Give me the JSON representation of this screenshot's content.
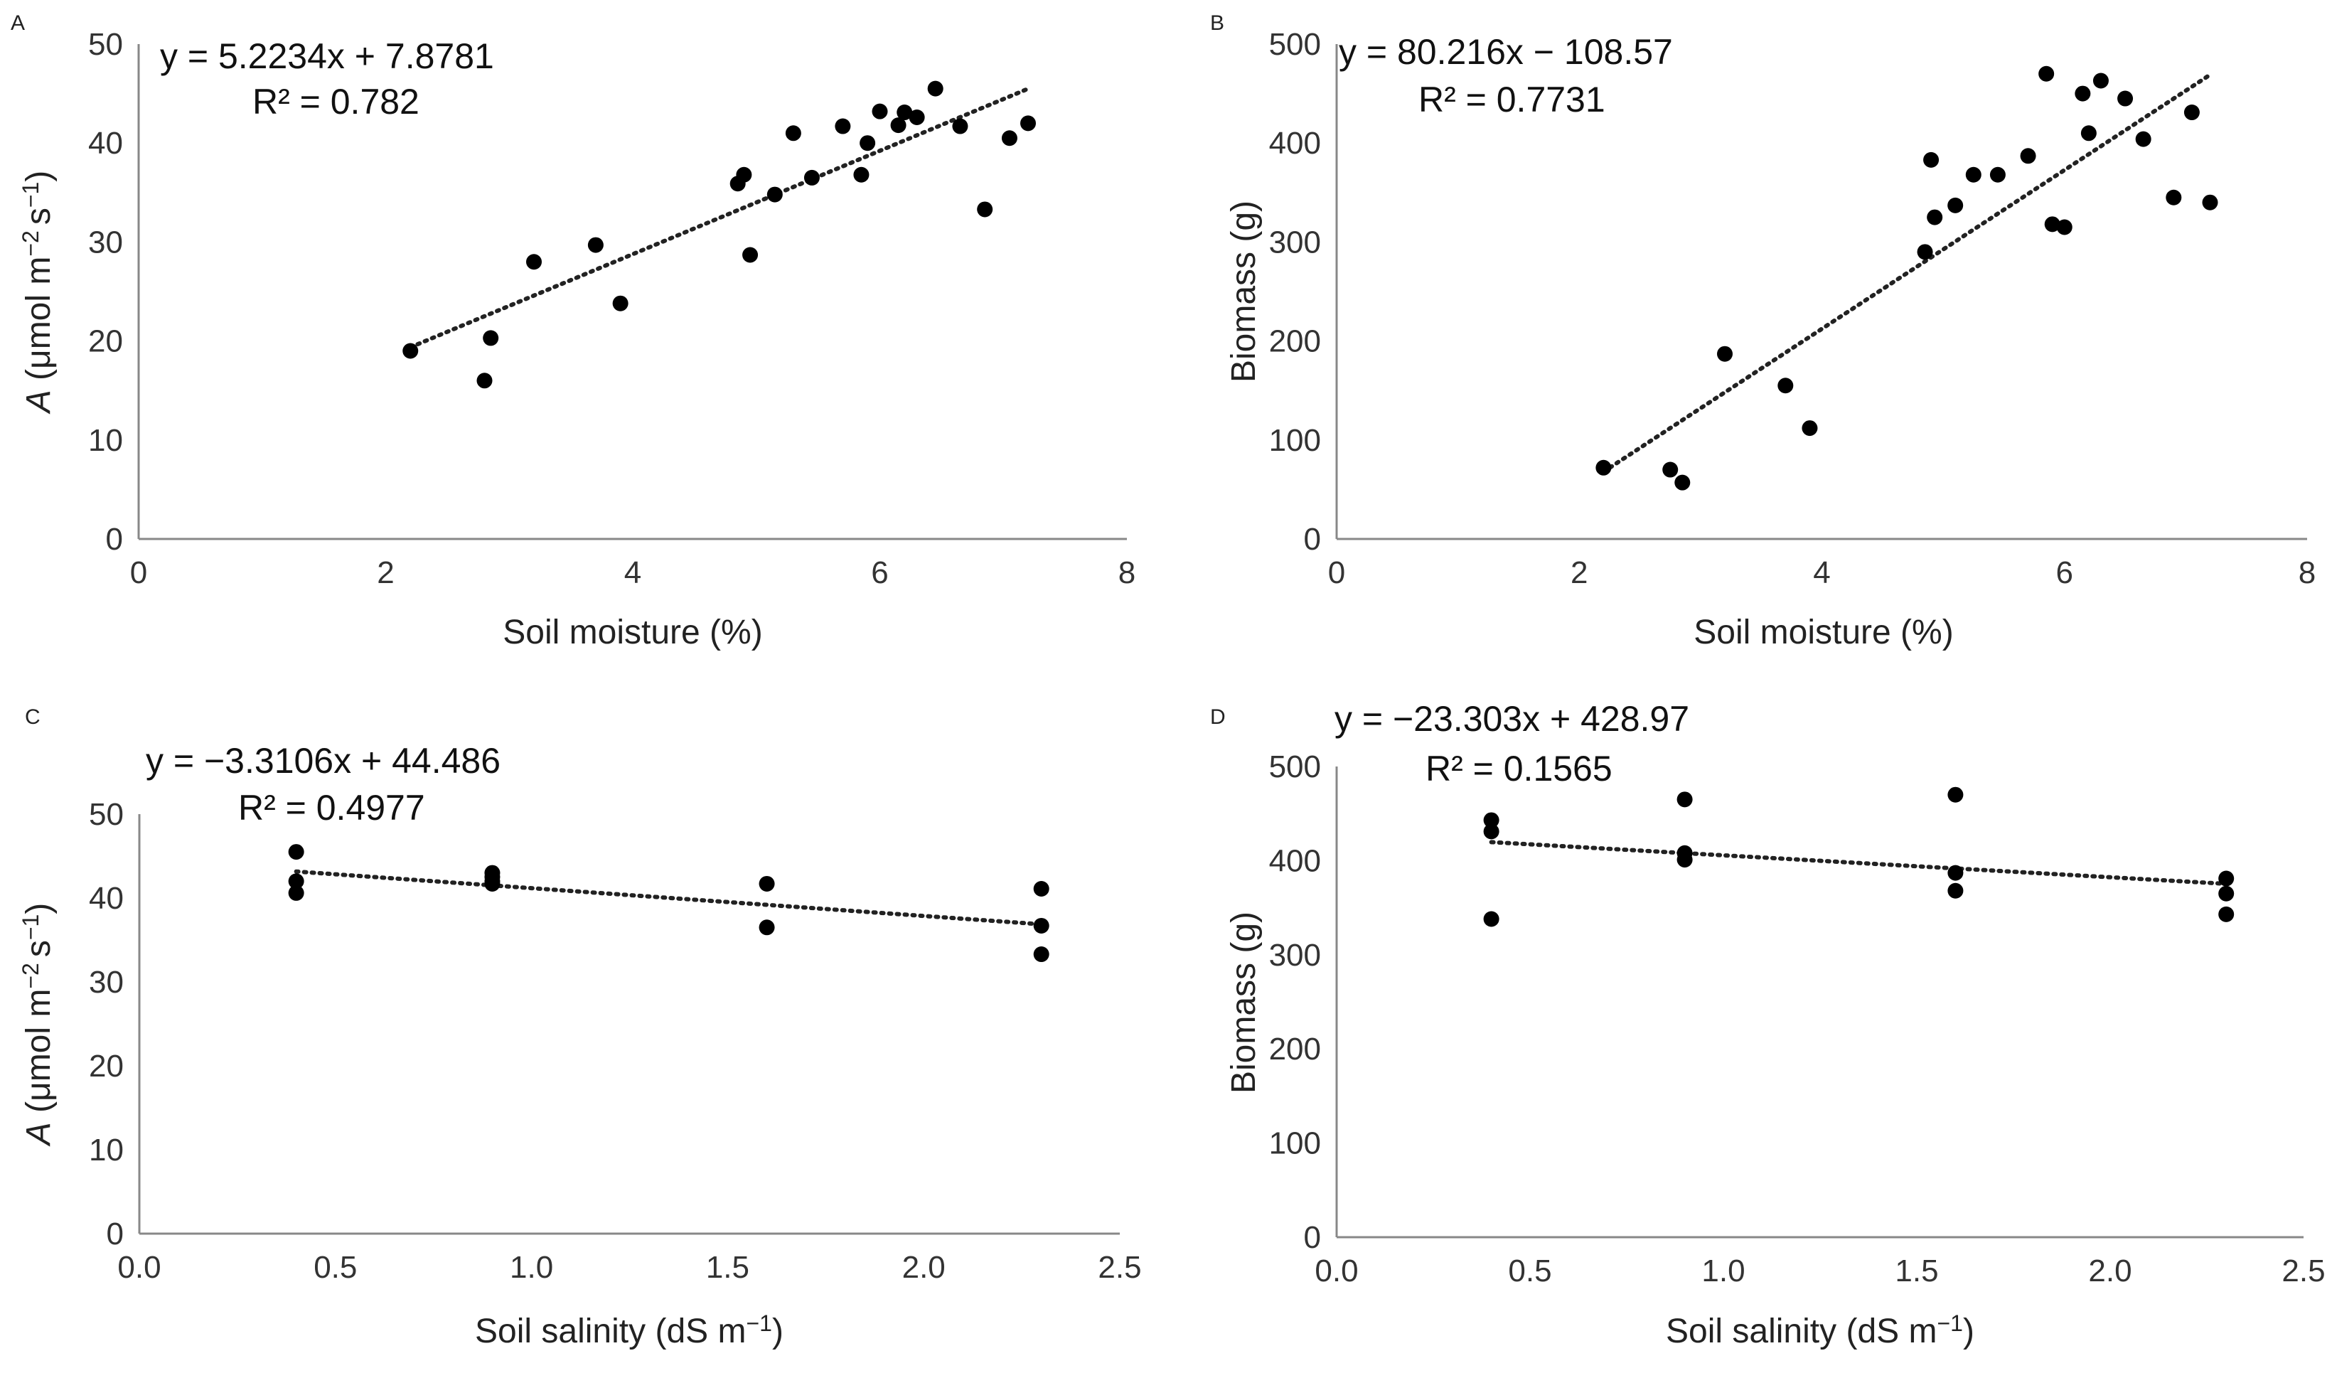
{
  "chart_data": [
    {
      "panel": "A",
      "type": "scatter",
      "equation": "y = 5.2234x + 7.8781",
      "r2": "R² = 0.782",
      "slope": 5.2234,
      "intercept": 7.8781,
      "trend_x": [
        2.2,
        7.2
      ],
      "xlabel": "Soil moisture (%)",
      "ylabel_prefix": "A",
      "ylabel_rest": " (μmol m",
      "ylabel_exp1": "−2",
      "ylabel_mid": "s",
      "ylabel_exp2": "−1",
      "ylabel_end": ")",
      "xlim": [
        0,
        8
      ],
      "ylim": [
        0,
        50
      ],
      "x_ticks": [
        0,
        2,
        4,
        6,
        8
      ],
      "x_tick_labels": [
        "0",
        "2",
        "4",
        "6",
        "8"
      ],
      "y_ticks": [
        0,
        10,
        20,
        30,
        40,
        50
      ],
      "y_tick_labels": [
        "0",
        "10",
        "20",
        "30",
        "40",
        "50"
      ],
      "x": [
        2.2,
        2.8,
        2.85,
        3.2,
        3.7,
        3.9,
        4.85,
        4.9,
        4.95,
        5.15,
        5.3,
        5.45,
        5.7,
        5.85,
        5.9,
        6.0,
        6.15,
        6.2,
        6.3,
        6.45,
        6.65,
        6.85,
        7.05,
        7.2
      ],
      "y": [
        19,
        16,
        20.3,
        28,
        29.7,
        23.8,
        35.9,
        36.8,
        28.7,
        34.8,
        41,
        36.5,
        41.7,
        36.8,
        40,
        43.2,
        41.8,
        43.1,
        42.6,
        45.5,
        41.7,
        33.3,
        40.5,
        42
      ]
    },
    {
      "panel": "B",
      "type": "scatter",
      "equation": "y = 80.216x − 108.57",
      "r2": "R² = 0.7731",
      "slope": 80.216,
      "intercept": -108.57,
      "trend_x": [
        2.2,
        7.2
      ],
      "xlabel": "Soil moisture (%)",
      "ylabel": "Biomass (g)",
      "xlim": [
        0,
        8
      ],
      "ylim": [
        0,
        500
      ],
      "x_ticks": [
        0,
        2,
        4,
        6,
        8
      ],
      "x_tick_labels": [
        "0",
        "2",
        "4",
        "6",
        "8"
      ],
      "y_ticks": [
        0,
        100,
        200,
        300,
        400,
        500
      ],
      "y_tick_labels": [
        "0",
        "100",
        "200",
        "300",
        "400",
        "500"
      ],
      "x": [
        2.2,
        2.75,
        2.85,
        3.2,
        3.7,
        3.9,
        4.85,
        4.9,
        4.93,
        5.1,
        5.25,
        5.45,
        5.7,
        5.85,
        5.9,
        6.0,
        6.15,
        6.2,
        6.3,
        6.5,
        6.65,
        6.9,
        7.05,
        7.2
      ],
      "y": [
        72,
        70,
        57,
        187,
        155,
        112,
        290,
        383,
        325,
        337,
        368,
        368,
        387,
        470,
        318,
        315,
        450,
        410,
        463,
        445,
        404,
        345,
        431,
        340
      ]
    },
    {
      "panel": "C",
      "type": "scatter",
      "equation": "y = −3.3106x + 44.486",
      "r2": "R² = 0.4977",
      "slope": -3.3106,
      "intercept": 44.486,
      "trend_x": [
        0.4,
        2.3
      ],
      "xlabel_main": "Soil salinity (dS m",
      "xlabel_exp": "−1",
      "xlabel_end": ")",
      "ylabel_prefix": "A",
      "ylabel_rest": " (μmol m",
      "ylabel_exp1": "−2",
      "ylabel_mid": "s",
      "ylabel_exp2": "−1",
      "ylabel_end": ")",
      "xlim": [
        0,
        2.5
      ],
      "ylim": [
        0,
        50
      ],
      "x_ticks": [
        0,
        0.5,
        1,
        1.5,
        2,
        2.5
      ],
      "x_tick_labels": [
        "0.0",
        "0.5",
        "1.0",
        "1.5",
        "2.0",
        "2.5"
      ],
      "y_ticks": [
        0,
        10,
        20,
        30,
        40,
        50
      ],
      "y_tick_labels": [
        "0",
        "10",
        "20",
        "30",
        "40",
        "50"
      ],
      "x": [
        0.4,
        0.4,
        0.4,
        0.9,
        0.9,
        0.9,
        0.9,
        1.6,
        1.6,
        2.3,
        2.3,
        2.3
      ],
      "y": [
        45.5,
        42,
        40.6,
        43,
        42.5,
        42,
        41.7,
        41.7,
        36.5,
        41.1,
        36.7,
        33.3
      ]
    },
    {
      "panel": "D",
      "type": "scatter",
      "equation": "y = −23.303x + 428.97",
      "r2": "R² = 0.1565",
      "slope": -23.303,
      "intercept": 428.97,
      "trend_x": [
        0.4,
        2.3
      ],
      "xlabel_main": "Soil salinity (dS m",
      "xlabel_exp": "−1",
      "xlabel_end": ")",
      "ylabel": "Biomass (g)",
      "xlim": [
        0,
        2.5
      ],
      "ylim": [
        0,
        500
      ],
      "x_ticks": [
        0,
        0.5,
        1,
        1.5,
        2,
        2.5
      ],
      "x_tick_labels": [
        "0.0",
        "0.5",
        "1.0",
        "1.5",
        "2.0",
        "2.5"
      ],
      "y_ticks": [
        0,
        100,
        200,
        300,
        400,
        500
      ],
      "y_tick_labels": [
        "0",
        "100",
        "200",
        "300",
        "400",
        "500"
      ],
      "x": [
        0.4,
        0.4,
        0.4,
        0.9,
        0.9,
        0.9,
        1.6,
        1.6,
        1.6,
        2.3,
        2.3,
        2.3
      ],
      "y": [
        443,
        431,
        338,
        465,
        408,
        401,
        470,
        387,
        368,
        381,
        365,
        343
      ]
    }
  ]
}
